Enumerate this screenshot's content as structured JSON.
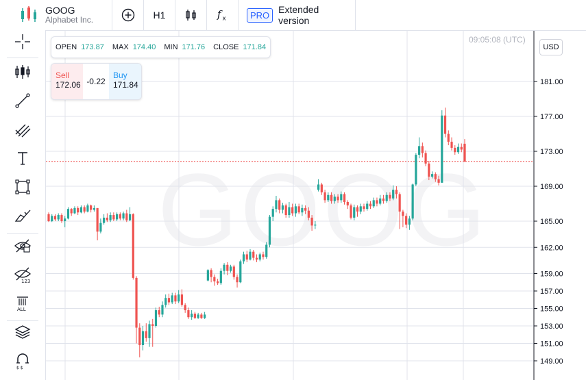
{
  "header": {
    "symbol": "GOOG",
    "company": "Alphabet Inc.",
    "interval": "H1",
    "pro_badge": "PRO",
    "extended_label": "Extended version"
  },
  "ohlc": {
    "open_label": "OPEN",
    "open": "173.87",
    "max_label": "MAX",
    "max": "174.40",
    "min_label": "MIN",
    "min": "171.76",
    "close_label": "CLOSE",
    "close": "171.84"
  },
  "trade": {
    "sell_label": "Sell",
    "sell_price": "172.06",
    "spread": "-0.22",
    "buy_label": "Buy",
    "buy_price": "171.84"
  },
  "clock": "09:05:08 (UTC)",
  "currency": "USD",
  "watermark": "GOOG",
  "colors": {
    "up": "#26a69a",
    "down": "#ef5350",
    "grid": "#e0e3eb"
  },
  "left_tools": [
    "crosshair-icon",
    "indicators-icon",
    "trend-line-icon",
    "fib-icon",
    "text-icon",
    "rectangle-icon",
    "brush-icon",
    "hide-drawings-icon",
    "hide-indicators-icon",
    "delete-all-icon",
    "layers-icon",
    "magnet-icon"
  ],
  "chart_data": {
    "type": "candlestick",
    "ylim": [
      149,
      183
    ],
    "y_ticks": [
      "181.00",
      "177.00",
      "173.00",
      "169.00",
      "165.00",
      "162.00",
      "159.00",
      "157.00",
      "155.00",
      "153.00",
      "151.00",
      "149.00"
    ],
    "last_price": 171.84,
    "candles": [
      [
        165.8,
        165.0,
        166.0,
        164.9
      ],
      [
        165.0,
        165.6,
        165.8,
        164.9
      ],
      [
        165.6,
        165.2,
        165.8,
        165.0
      ],
      [
        165.2,
        165.7,
        165.9,
        165.0
      ],
      [
        165.7,
        165.0,
        165.9,
        164.8
      ],
      [
        165.0,
        165.3,
        165.6,
        164.3
      ],
      [
        165.3,
        166.4,
        166.6,
        165.2
      ],
      [
        166.4,
        165.9,
        166.5,
        165.6
      ],
      [
        165.9,
        166.5,
        166.7,
        165.8
      ],
      [
        166.5,
        166.0,
        166.7,
        165.7
      ],
      [
        166.0,
        166.6,
        166.8,
        165.9
      ],
      [
        166.6,
        166.1,
        166.8,
        165.9
      ],
      [
        166.1,
        166.8,
        167.0,
        166.0
      ],
      [
        166.8,
        166.3,
        166.9,
        166.0
      ],
      [
        166.3,
        166.5,
        166.8,
        166.1
      ],
      [
        166.5,
        163.8,
        166.5,
        162.8
      ],
      [
        163.8,
        164.8,
        165.3,
        163.6
      ],
      [
        164.8,
        165.4,
        165.8,
        164.6
      ],
      [
        165.4,
        165.1,
        165.9,
        164.9
      ],
      [
        165.1,
        165.7,
        166.0,
        164.9
      ],
      [
        165.7,
        165.2,
        166.0,
        165.0
      ],
      [
        165.2,
        165.8,
        166.0,
        165.0
      ],
      [
        165.8,
        165.3,
        166.0,
        165.1
      ],
      [
        165.3,
        165.9,
        166.1,
        165.1
      ],
      [
        165.9,
        165.1,
        166.3,
        164.9
      ],
      [
        165.1,
        165.8,
        166.6,
        165.0
      ],
      [
        165.8,
        158.5,
        165.9,
        158.3
      ],
      [
        158.5,
        152.8,
        158.7,
        151.0
      ],
      [
        152.8,
        150.8,
        153.3,
        149.4
      ],
      [
        150.8,
        152.4,
        153.0,
        150.2
      ],
      [
        152.4,
        151.6,
        153.3,
        151.2
      ],
      [
        151.6,
        153.2,
        153.6,
        150.6
      ],
      [
        153.2,
        153.0,
        153.8,
        150.6
      ],
      [
        153.0,
        154.8,
        155.1,
        152.8
      ],
      [
        154.8,
        154.3,
        155.2,
        154.0
      ],
      [
        154.3,
        155.4,
        155.8,
        154.0
      ],
      [
        155.4,
        156.2,
        156.6,
        155.1
      ],
      [
        156.2,
        155.7,
        156.7,
        155.4
      ],
      [
        155.7,
        156.5,
        156.8,
        155.5
      ],
      [
        156.5,
        155.8,
        156.8,
        155.5
      ],
      [
        155.8,
        156.6,
        157.1,
        155.6
      ],
      [
        156.6,
        155.4,
        157.2,
        155.2
      ],
      [
        155.4,
        154.8,
        155.6,
        154.5
      ],
      [
        154.8,
        154.0,
        155.1,
        153.8
      ],
      [
        154.0,
        154.4,
        154.8,
        153.7
      ],
      [
        154.4,
        153.9,
        154.6,
        153.8
      ],
      [
        153.9,
        154.3,
        154.5,
        153.8
      ],
      [
        154.3,
        153.9,
        154.5,
        153.8
      ],
      [
        153.9,
        154.3,
        154.6,
        153.8
      ],
      [
        158.2,
        159.4,
        159.5,
        158.1
      ],
      [
        159.4,
        158.6,
        159.6,
        158.0
      ],
      [
        158.6,
        158.1,
        158.9,
        157.6
      ],
      [
        158.1,
        157.9,
        158.4,
        157.7
      ],
      [
        157.9,
        159.3,
        159.6,
        157.7
      ],
      [
        159.3,
        160.0,
        160.2,
        158.9
      ],
      [
        160.0,
        159.3,
        160.3,
        158.8
      ],
      [
        159.3,
        159.8,
        160.0,
        159.1
      ],
      [
        159.8,
        158.6,
        160.0,
        158.3
      ],
      [
        158.6,
        158.0,
        158.9,
        157.4
      ],
      [
        158.0,
        160.4,
        160.6,
        157.9
      ],
      [
        160.4,
        161.2,
        161.5,
        160.1
      ],
      [
        161.2,
        160.6,
        161.6,
        160.3
      ],
      [
        160.6,
        161.5,
        161.8,
        160.5
      ],
      [
        161.5,
        160.8,
        161.7,
        160.5
      ],
      [
        160.8,
        160.6,
        161.2,
        160.3
      ],
      [
        160.6,
        161.2,
        161.4,
        160.4
      ],
      [
        161.2,
        160.9,
        161.5,
        160.6
      ],
      [
        160.9,
        162.3,
        162.6,
        160.7
      ],
      [
        162.3,
        165.5,
        165.7,
        162.0
      ],
      [
        165.5,
        166.4,
        166.7,
        165.0
      ],
      [
        166.4,
        167.4,
        167.9,
        166.0
      ],
      [
        167.4,
        166.3,
        167.6,
        165.9
      ],
      [
        166.3,
        166.8,
        167.1,
        165.9
      ],
      [
        166.8,
        165.7,
        167.0,
        165.4
      ],
      [
        165.7,
        166.6,
        167.2,
        165.4
      ],
      [
        166.6,
        165.9,
        167.0,
        165.6
      ],
      [
        165.9,
        166.7,
        167.0,
        165.5
      ],
      [
        166.7,
        166.0,
        167.0,
        165.8
      ],
      [
        166.0,
        166.5,
        166.9,
        165.6
      ],
      [
        166.5,
        166.2,
        166.8,
        165.8
      ],
      [
        166.2,
        165.4,
        166.6,
        165.1
      ],
      [
        165.4,
        164.5,
        165.7,
        163.9
      ],
      [
        164.5,
        164.6,
        165.0,
        164.1
      ],
      [
        168.6,
        169.2,
        169.8,
        168.4
      ],
      [
        169.2,
        168.3,
        169.4,
        168.0
      ],
      [
        168.3,
        167.4,
        168.6,
        167.1
      ],
      [
        167.4,
        168.0,
        168.3,
        167.2
      ],
      [
        168.0,
        167.3,
        168.3,
        167.0
      ],
      [
        167.3,
        167.8,
        168.1,
        167.0
      ],
      [
        167.8,
        167.4,
        168.1,
        167.1
      ],
      [
        167.4,
        168.1,
        168.4,
        167.1
      ],
      [
        168.1,
        167.2,
        168.3,
        166.9
      ],
      [
        167.2,
        166.8,
        167.4,
        166.4
      ],
      [
        166.8,
        165.4,
        167.0,
        165.2
      ],
      [
        165.4,
        166.6,
        166.9,
        165.1
      ],
      [
        166.6,
        166.1,
        166.8,
        165.5
      ],
      [
        166.1,
        166.7,
        167.0,
        165.8
      ],
      [
        166.7,
        166.4,
        167.0,
        166.1
      ],
      [
        166.4,
        167.0,
        167.3,
        166.2
      ],
      [
        167.0,
        166.7,
        167.3,
        166.4
      ],
      [
        166.7,
        167.4,
        167.7,
        166.5
      ],
      [
        167.4,
        167.0,
        167.7,
        166.7
      ],
      [
        167.0,
        167.6,
        168.0,
        166.8
      ],
      [
        167.6,
        167.3,
        168.0,
        167.0
      ],
      [
        167.3,
        168.0,
        168.3,
        167.1
      ],
      [
        168.0,
        167.6,
        168.3,
        167.3
      ],
      [
        167.6,
        168.6,
        169.1,
        167.4
      ],
      [
        168.6,
        168.1,
        169.0,
        167.6
      ],
      [
        168.1,
        166.1,
        168.3,
        164.1
      ],
      [
        166.1,
        165.6,
        166.3,
        164.3
      ],
      [
        165.6,
        164.6,
        165.9,
        164.2
      ],
      [
        164.6,
        165.3,
        165.6,
        164.0
      ],
      [
        165.3,
        169.2,
        169.3,
        165.1
      ],
      [
        169.2,
        172.6,
        172.8,
        169.0
      ],
      [
        172.6,
        173.6,
        174.6,
        172.2
      ],
      [
        173.6,
        172.8,
        174.0,
        172.3
      ],
      [
        172.8,
        171.6,
        173.1,
        171.3
      ],
      [
        171.6,
        170.1,
        171.9,
        169.7
      ],
      [
        170.1,
        170.4,
        170.7,
        169.9
      ],
      [
        170.4,
        169.8,
        170.6,
        169.5
      ],
      [
        169.8,
        169.4,
        170.2,
        169.1
      ],
      [
        169.4,
        177.1,
        177.7,
        171.9
      ],
      [
        177.1,
        175.0,
        178.0,
        174.6
      ],
      [
        175.0,
        174.1,
        175.4,
        173.7
      ],
      [
        174.1,
        173.4,
        174.6,
        173.1
      ],
      [
        173.4,
        172.9,
        173.7,
        172.6
      ],
      [
        172.9,
        173.5,
        173.9,
        172.7
      ],
      [
        173.5,
        173.2,
        173.9,
        172.9
      ],
      [
        173.87,
        171.84,
        174.4,
        171.76
      ]
    ]
  }
}
